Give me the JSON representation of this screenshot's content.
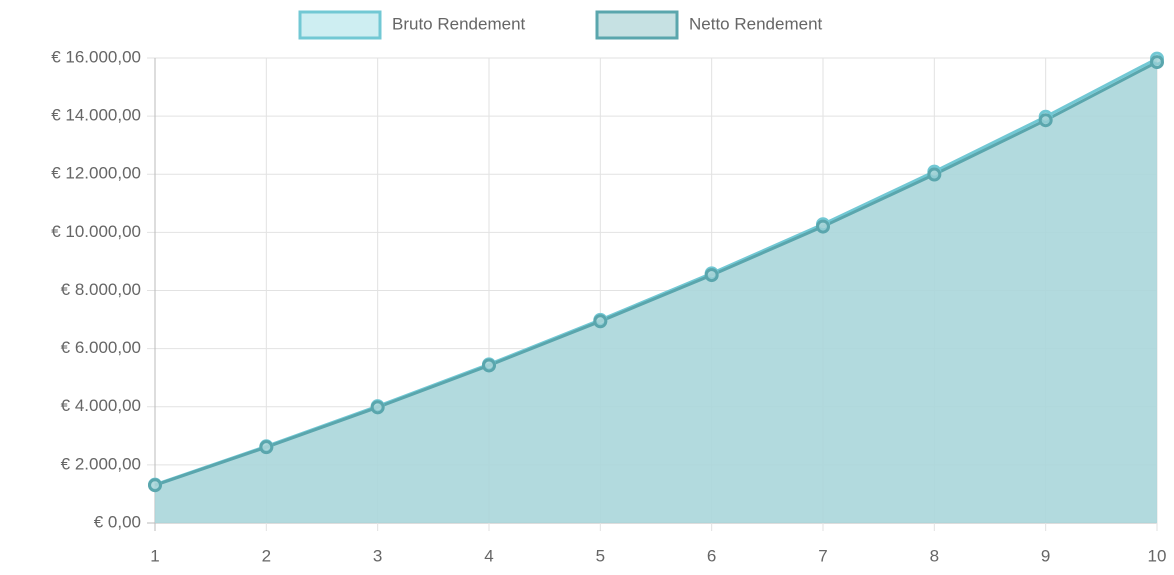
{
  "chart_data": {
    "type": "line",
    "x": [
      1,
      2,
      3,
      4,
      5,
      6,
      7,
      8,
      9,
      10
    ],
    "series": [
      {
        "name": "Bruto Rendement",
        "color": "#72c8d4",
        "fill": "rgba(190,232,238,0.75)",
        "values": [
          1320,
          2640,
          4020,
          5460,
          6990,
          8590,
          10280,
          12090,
          13980,
          15980
        ]
      },
      {
        "name": "Netto Rendement",
        "color": "#5aa6ad",
        "fill": "rgba(160,205,208,0.6)",
        "values": [
          1300,
          2610,
          3980,
          5420,
          6940,
          8530,
          10200,
          11990,
          13860,
          15860
        ]
      }
    ],
    "xlim": [
      1,
      10
    ],
    "xticks": [
      1,
      2,
      3,
      4,
      5,
      6,
      7,
      8,
      9,
      10
    ],
    "ylim": [
      0,
      16000
    ],
    "yticks": [
      {
        "value": 0,
        "label": "€ 0,00"
      },
      {
        "value": 2000,
        "label": "€ 2.000,00"
      },
      {
        "value": 4000,
        "label": "€ 4.000,00"
      },
      {
        "value": 6000,
        "label": "€ 6.000,00"
      },
      {
        "value": 8000,
        "label": "€ 8.000,00"
      },
      {
        "value": 10000,
        "label": "€ 10.000,00"
      },
      {
        "value": 12000,
        "label": "€ 12.000,00"
      },
      {
        "value": 14000,
        "label": "€ 14.000,00"
      },
      {
        "value": 16000,
        "label": "€ 16.000,00"
      }
    ],
    "grid": true,
    "legend": "top"
  }
}
